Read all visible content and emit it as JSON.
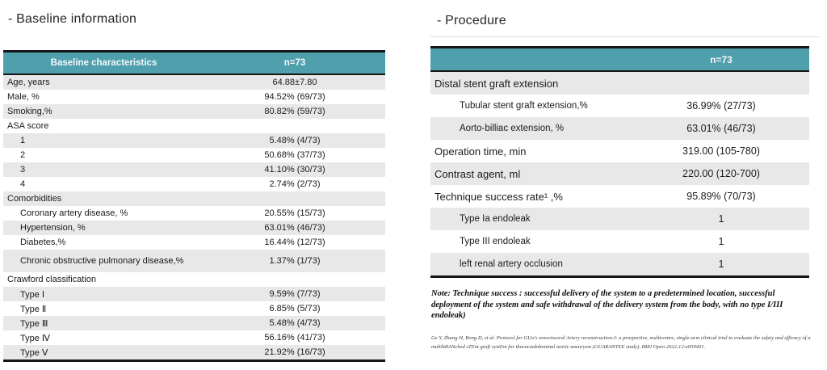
{
  "slide": {
    "baseline_title": "- Baseline information",
    "procedure_title": "- Procedure"
  },
  "colors": {
    "header_teal": "#4f9fad",
    "stripe_gray": "#e8e8e8",
    "border_black": "#161616"
  },
  "baseline_table": {
    "header": {
      "label": "Baseline characteristics",
      "n": "n=73"
    },
    "rows": [
      {
        "label": "Age, years",
        "value": "64.88±7.80"
      },
      {
        "label": "Male, %",
        "value": "94.52% (69/73)"
      },
      {
        "label": "Smoking,%",
        "value": "80.82% (59/73)"
      },
      {
        "label": "ASA score",
        "value": ""
      },
      {
        "label": "1",
        "value": "5.48% (4/73)",
        "indent": true
      },
      {
        "label": "2",
        "value": "50.68% (37/73)",
        "indent": true
      },
      {
        "label": "3",
        "value": "41.10% (30/73)",
        "indent": true
      },
      {
        "label": "4",
        "value": "2.74% (2/73)",
        "indent": true
      },
      {
        "label": "Comorbidities",
        "value": ""
      },
      {
        "label": "Coronary artery disease, %",
        "value": "20.55% (15/73)",
        "indent": true
      },
      {
        "label": "Hypertension, %",
        "value": "63.01% (46/73)",
        "indent": true
      },
      {
        "label": "Diabetes,%",
        "value": "16.44% (12/73)",
        "indent": true
      },
      {
        "label": "Chronic obstructive pulmonary disease,%",
        "value": "1.37% (1/73)",
        "indent": true,
        "tall": true
      },
      {
        "label": "Crawford classification",
        "value": ""
      },
      {
        "label": "Type Ⅰ",
        "value": "9.59% (7/73)",
        "indent": true
      },
      {
        "label": "Type Ⅱ",
        "value": "6.85% (5/73)",
        "indent": true
      },
      {
        "label": "Type Ⅲ",
        "value": "5.48% (4/73)",
        "indent": true
      },
      {
        "label": "Type Ⅳ",
        "value": "56.16% (41/73)",
        "indent": true
      },
      {
        "label": "Type Ⅴ",
        "value": "21.92% (16/73)",
        "indent": true
      }
    ]
  },
  "procedure_table": {
    "header": {
      "label": "",
      "n": "n=73"
    },
    "rows": [
      {
        "label": "Distal stent graft extension",
        "value": ""
      },
      {
        "label": "Tubular stent graft extension,%",
        "value": "36.99% (27/73)",
        "indent": true
      },
      {
        "label": "Aorto-billiac extension, %",
        "value": "63.01% (46/73)",
        "indent": true
      },
      {
        "label": "Operation time, min",
        "value": "319.00 (105-780)"
      },
      {
        "label": "Contrast agent, ml",
        "value": "220.00 (120-700)"
      },
      {
        "label": "Technique success rate¹ ,%",
        "value": "95.89% (70/73)"
      },
      {
        "label": "Type Ia endoleak",
        "value": "1",
        "indent": true
      },
      {
        "label": "Type III endoleak",
        "value": "1",
        "indent": true
      },
      {
        "label": "left renal artery occlusion",
        "value": "1",
        "indent": true
      }
    ]
  },
  "note": {
    "text": "Note: Technique success : successful delivery of the system to a predetermined location, successful deployment of the system and safe withdrawal of the delivery system from the body, with no type I/III endoleak)"
  },
  "citation": {
    "text": "Ge Y, Zhang H, Rong D, et al. Protocol for GUo's renovisceral Artery reconstruction-I: a prospective, multicentre, single-arm clinical trial to evaluate the safety and efficacy of a multibRANched sTEnt graft systEm for thoracoabdominal aortic aneurysm (GUARANTEE study). BMJ Open 2022;12:e059401."
  }
}
